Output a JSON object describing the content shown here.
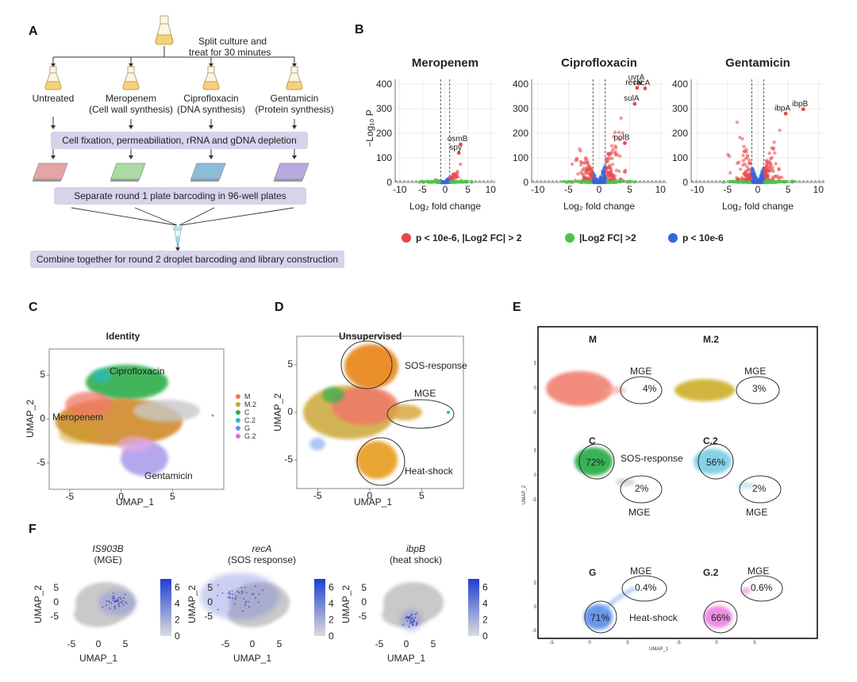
{
  "panels": {
    "A": {
      "letter": "A",
      "split_label_line1": "Split culture and",
      "split_label_line2": "treat for 30 minutes",
      "conditions": [
        {
          "name": "Untreated",
          "sub": ""
        },
        {
          "name": "Meropenem",
          "sub": "(Cell wall synthesis)"
        },
        {
          "name": "Ciprofloxacin",
          "sub": "(DNA synthesis)"
        },
        {
          "name": "Gentamicin",
          "sub": "(Protein synthesis)"
        }
      ],
      "steps": [
        "Cell fixation, permeabiliation, rRNA and gDNA depletion",
        "Separate round 1 plate barcoding in 96-well plates",
        "Combine together for round 2 droplet barcoding and library construction"
      ],
      "plate_colors": [
        "#e6a4a4",
        "#a9dba2",
        "#8fbcd9",
        "#b9a9e2"
      ]
    },
    "B": {
      "letter": "B",
      "ylabel": "−Log₁₀ P",
      "xlabel": "Log₂ fold change",
      "legend": [
        {
          "label": "p < 10e-6, |Log2 FC| > 2",
          "color": "#e8474a"
        },
        {
          "label": "|Log2 FC| >2",
          "color": "#4cc54a"
        },
        {
          "label": "p < 10e-6",
          "color": "#3b64d8"
        }
      ]
    },
    "C": {
      "letter": "C",
      "title": "Identity",
      "xlabel": "UMAP_1",
      "ylabel": "UMAP_2",
      "cluster_labels": [
        "Ciprofloxacin",
        "Meropenem",
        "Gentamicin"
      ],
      "legend": [
        {
          "label": "M",
          "color": "#f07868"
        },
        {
          "label": "M.2",
          "color": "#c9a229"
        },
        {
          "label": "C",
          "color": "#2fae4c"
        },
        {
          "label": "C.2",
          "color": "#28b9d6"
        },
        {
          "label": "G",
          "color": "#5f93e8"
        },
        {
          "label": "G.2",
          "color": "#e96ad6"
        }
      ]
    },
    "D": {
      "letter": "D",
      "title": "Unsupervised",
      "xlabel": "UMAP_1",
      "ylabel": "UMAP_2",
      "annotations": [
        "SOS-response",
        "MGE",
        "Heat-shock"
      ]
    },
    "E": {
      "letter": "E",
      "xlabel": "UMAP_1",
      "ylabel": "UMAP_2",
      "subpanels": [
        {
          "name": "M",
          "mge": "4%"
        },
        {
          "name": "M.2",
          "mge": "3%"
        },
        {
          "name": "C",
          "main": "72%",
          "mge": "2%",
          "main_label": "SOS-response"
        },
        {
          "name": "C.2",
          "main": "56%",
          "mge": "2%"
        },
        {
          "name": "G",
          "main": "71%",
          "mge": "0.4%",
          "main_label": "Heat-shock"
        },
        {
          "name": "G.2",
          "main": "66%",
          "mge": "0.6%"
        }
      ],
      "mge_label": "MGE"
    },
    "F": {
      "letter": "F",
      "xlabel": "UMAP_1",
      "ylabel": "UMAP_2",
      "genes": [
        {
          "gene": "IS903B",
          "sub": "(MGE)",
          "max": 6
        },
        {
          "gene": "recA",
          "sub": "(SOS response)",
          "max": 6
        },
        {
          "gene": "ibpB",
          "sub": "(heat shock)",
          "max": 6
        }
      ]
    }
  },
  "chart_data": [
    {
      "type": "scatter",
      "title": "Meropenem",
      "xlabel": "Log₂ fold change",
      "ylabel": "−Log₁₀ P",
      "xlim": [
        -11,
        11
      ],
      "ylim": [
        0,
        420
      ],
      "xticks": [
        -10,
        -5,
        0,
        5,
        10
      ],
      "yticks": [
        0,
        100,
        200,
        300,
        400
      ],
      "labeled_points": [
        {
          "label": "osmB",
          "x": 3.4,
          "y": 155
        },
        {
          "label": "spy",
          "x": 3.0,
          "y": 120
        }
      ]
    },
    {
      "type": "scatter",
      "title": "Ciprofloxacin",
      "xlabel": "Log₂ fold change",
      "ylabel": "−Log₁₀ P",
      "xlim": [
        -11,
        11
      ],
      "ylim": [
        0,
        420
      ],
      "xticks": [
        -10,
        -5,
        0,
        5,
        10
      ],
      "yticks": [
        0,
        100,
        200,
        300,
        400
      ],
      "labeled_points": [
        {
          "label": "uvrA",
          "x": 6.6,
          "y": 405
        },
        {
          "label": "recN",
          "x": 6.2,
          "y": 385
        },
        {
          "label": "recA",
          "x": 7.5,
          "y": 383
        },
        {
          "label": "sulA",
          "x": 5.8,
          "y": 320
        },
        {
          "label": "polB",
          "x": 4.2,
          "y": 160
        }
      ]
    },
    {
      "type": "scatter",
      "title": "Gentamicin",
      "xlabel": "Log₂ fold change",
      "ylabel": "−Log₁₀ P",
      "xlim": [
        -11,
        11
      ],
      "ylim": [
        0,
        420
      ],
      "xticks": [
        -10,
        -5,
        0,
        5,
        10
      ],
      "yticks": [
        0,
        100,
        200,
        300,
        400
      ],
      "labeled_points": [
        {
          "label": "ibpA",
          "x": 4.6,
          "y": 280
        },
        {
          "label": "ibpB",
          "x": 7.5,
          "y": 298
        }
      ]
    }
  ]
}
